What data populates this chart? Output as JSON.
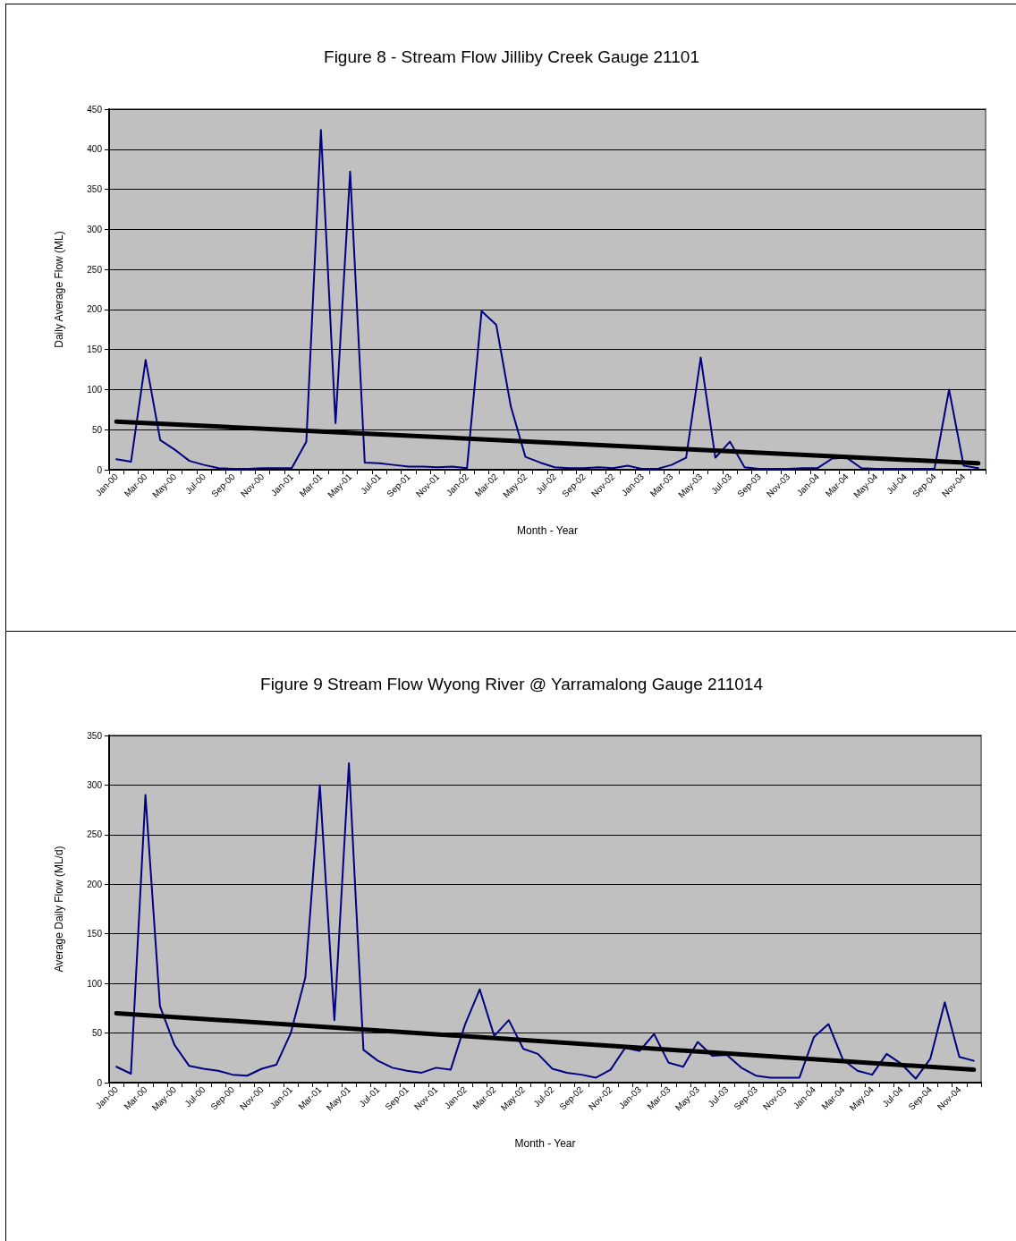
{
  "chart_data": [
    {
      "type": "line",
      "title": "Figure 8 - Stream Flow Jilliby Creek Gauge 21101",
      "xlabel": "Month - Year",
      "ylabel": "Daily Average Flow (ML)",
      "categories": [
        "Jan-00",
        null,
        "Mar-00",
        null,
        "May-00",
        null,
        "Jul-00",
        null,
        "Sep-00",
        null,
        "Nov-00",
        null,
        "Jan-01",
        null,
        "Mar-01",
        null,
        "May-01",
        null,
        "Jul-01",
        null,
        "Sep-01",
        null,
        "Nov-01",
        null,
        "Jan-02",
        null,
        "Mar-02",
        null,
        "May-02",
        null,
        "Jul-02",
        null,
        "Sep-02",
        null,
        "Nov-02",
        null,
        "Jan-03",
        null,
        "Mar-03",
        null,
        "May-03",
        null,
        "Jul-03",
        null,
        "Sep-03",
        null,
        "Nov-03",
        null,
        "Jan-04",
        null,
        "Mar-04",
        null,
        "May-04",
        null,
        "Jul-04",
        null,
        "Sep-04",
        null,
        "Nov-04",
        null
      ],
      "ylim": [
        0,
        450
      ],
      "yticks": [
        0,
        50,
        100,
        150,
        200,
        250,
        300,
        350,
        400,
        450
      ],
      "grid": "y",
      "marker": "none",
      "series": [
        {
          "color": "#000080",
          "values": [
            13,
            10,
            137,
            37,
            25,
            11,
            6,
            2,
            1,
            1,
            2,
            2,
            2,
            35,
            424,
            58,
            372,
            9,
            8,
            6,
            4,
            4,
            3,
            4,
            2,
            198,
            181,
            79,
            16,
            9,
            3,
            2,
            2,
            3,
            2,
            5,
            1,
            1,
            6,
            15,
            140,
            15,
            35,
            3,
            1,
            1,
            1,
            2,
            2,
            14,
            15,
            2,
            1,
            1,
            1,
            1,
            1,
            100,
            5,
            2
          ]
        },
        {
          "type": "line",
          "color": "#000000",
          "values": [
            60,
            null,
            null,
            null,
            null,
            null,
            null,
            null,
            null,
            null,
            null,
            null,
            null,
            null,
            null,
            null,
            null,
            null,
            null,
            null,
            null,
            null,
            null,
            null,
            null,
            null,
            null,
            null,
            null,
            null,
            null,
            null,
            null,
            null,
            null,
            null,
            null,
            null,
            null,
            null,
            null,
            null,
            null,
            null,
            null,
            null,
            null,
            null,
            null,
            null,
            null,
            null,
            null,
            null,
            null,
            null,
            null,
            null,
            null,
            8
          ]
        }
      ]
    },
    {
      "type": "line",
      "title": "Figure 9 Stream Flow Wyong River @ Yarramalong Gauge 211014",
      "xlabel": "Month - Year",
      "ylabel": "Average Daily Flow (ML/d)",
      "categories": [
        "Jan-00",
        null,
        "Mar-00",
        null,
        "May-00",
        null,
        "Jul-00",
        null,
        "Sep-00",
        null,
        "Nov-00",
        null,
        "Jan-01",
        null,
        "Mar-01",
        null,
        "May-01",
        null,
        "Jul-01",
        null,
        "Sep-01",
        null,
        "Nov-01",
        null,
        "Jan-02",
        null,
        "Mar-02",
        null,
        "May-02",
        null,
        "Jul-02",
        null,
        "Sep-02",
        null,
        "Nov-02",
        null,
        "Jan-03",
        null,
        "Mar-03",
        null,
        "May-03",
        null,
        "Jul-03",
        null,
        "Sep-03",
        null,
        "Nov-03",
        null,
        "Jan-04",
        null,
        "Mar-04",
        null,
        "May-04",
        null,
        "Jul-04",
        null,
        "Sep-04",
        null,
        "Nov-04",
        null
      ],
      "ylim": [
        0,
        350
      ],
      "yticks": [
        0,
        50,
        100,
        150,
        200,
        250,
        300,
        350
      ],
      "grid": "y",
      "marker": "none",
      "series": [
        {
          "color": "#000080",
          "values": [
            16,
            9,
            290,
            77,
            38,
            17,
            14,
            12,
            8,
            7,
            14,
            18,
            50,
            106,
            300,
            63,
            322,
            33,
            22,
            15,
            12,
            10,
            15,
            13,
            59,
            94,
            47,
            63,
            34,
            29,
            14,
            10,
            8,
            5,
            13,
            35,
            32,
            49,
            20,
            16,
            41,
            27,
            28,
            15,
            7,
            5,
            5,
            5,
            46,
            59,
            23,
            12,
            8,
            29,
            19,
            4,
            24,
            81,
            26,
            22
          ]
        },
        {
          "type": "line",
          "color": "#000000",
          "values": [
            70,
            null,
            null,
            null,
            null,
            null,
            null,
            null,
            null,
            null,
            null,
            null,
            null,
            null,
            null,
            null,
            null,
            null,
            null,
            null,
            null,
            null,
            null,
            null,
            null,
            null,
            null,
            null,
            null,
            null,
            null,
            null,
            null,
            null,
            null,
            null,
            null,
            null,
            null,
            null,
            null,
            null,
            null,
            null,
            null,
            null,
            null,
            null,
            null,
            null,
            null,
            null,
            null,
            null,
            null,
            null,
            null,
            null,
            null,
            13
          ]
        }
      ]
    }
  ]
}
